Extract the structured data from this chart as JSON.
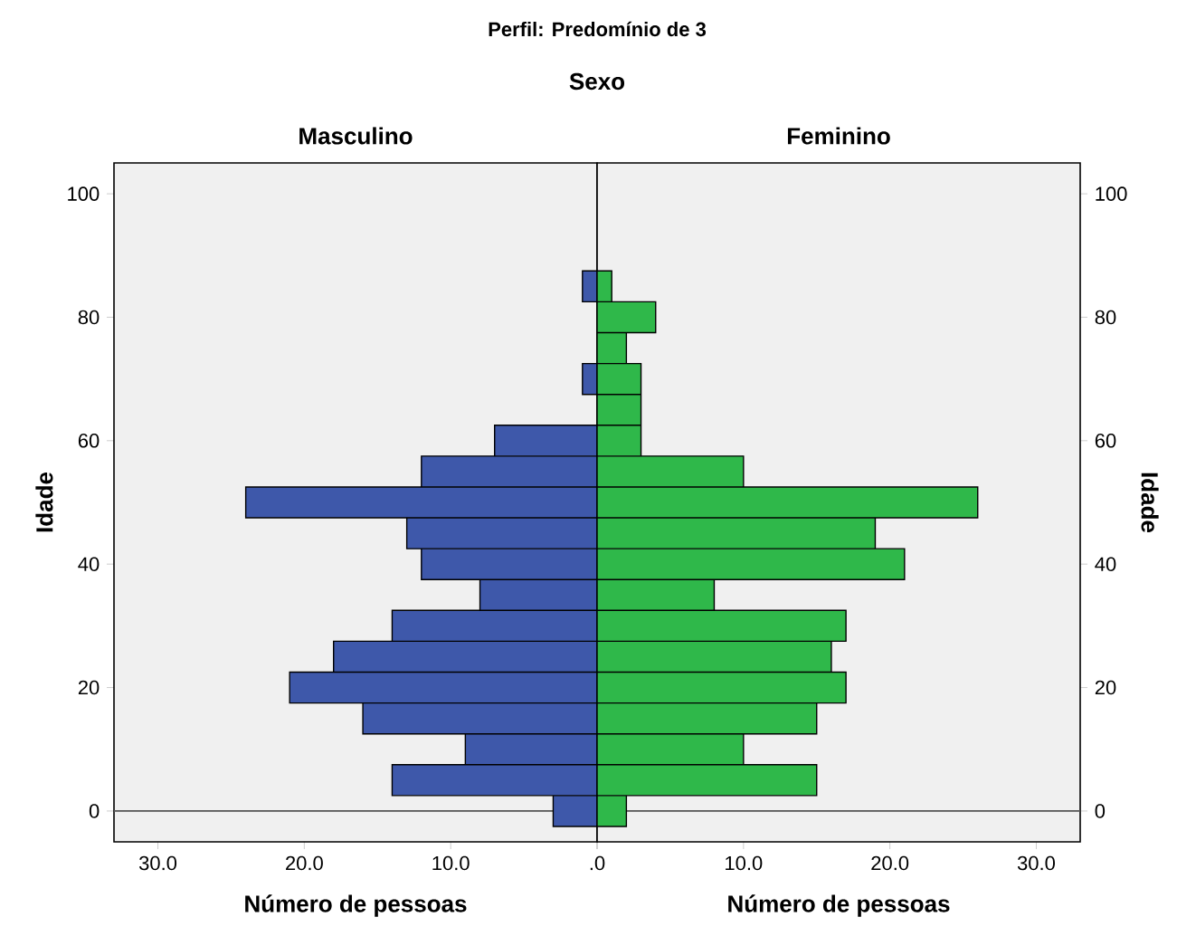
{
  "chart_data": [
    {
      "type": "bar",
      "orientation": "horizontal",
      "title": "Perfil: Predomínio de 3",
      "subtitle": "Sexo",
      "xlabel": "Número de pessoas",
      "ylabel": "Idade",
      "x": [
        0,
        5,
        10,
        15,
        20,
        25,
        30,
        35,
        40,
        45,
        50,
        55,
        60,
        65,
        70,
        75,
        80,
        85
      ],
      "series": [
        {
          "name": "Masculino",
          "color": "#3e58aa",
          "values": [
            3,
            14,
            9,
            16,
            21,
            18,
            14,
            8,
            12,
            13,
            24,
            12,
            7,
            0,
            1,
            0,
            0,
            1
          ]
        }
      ],
      "xlim": [
        33,
        0
      ],
      "xticks": [
        {
          "value": 30,
          "label": "30.0"
        },
        {
          "value": 20,
          "label": "20.0"
        },
        {
          "value": 10,
          "label": "10.0"
        },
        {
          "value": 0,
          "label": ".0"
        }
      ],
      "ylim": [
        -5,
        105
      ],
      "yticks": [
        0,
        20,
        40,
        60,
        80,
        100
      ],
      "ref_lines": [
        {
          "axis": "y",
          "value": 0,
          "color": "#555555"
        }
      ]
    },
    {
      "type": "bar",
      "orientation": "horizontal",
      "xlabel": "Número de pessoas",
      "ylabel": "Idade",
      "x": [
        0,
        5,
        10,
        15,
        20,
        25,
        30,
        35,
        40,
        45,
        50,
        55,
        60,
        65,
        70,
        75,
        80,
        85
      ],
      "series": [
        {
          "name": "Feminino",
          "color": "#2fb84a",
          "values": [
            2,
            15,
            10,
            15,
            17,
            16,
            17,
            8,
            21,
            19,
            26,
            10,
            3,
            3,
            3,
            2,
            4,
            1
          ]
        }
      ],
      "xlim": [
        0,
        33
      ],
      "xticks": [
        {
          "value": 0,
          "label": null
        },
        {
          "value": 10,
          "label": "10.0"
        },
        {
          "value": 20,
          "label": "20.0"
        },
        {
          "value": 30,
          "label": "30.0"
        }
      ],
      "ylim": [
        -5,
        105
      ],
      "yticks": [
        0,
        20,
        40,
        60,
        80,
        100
      ],
      "ref_lines": [
        {
          "axis": "y",
          "value": 0,
          "color": "#555555"
        }
      ]
    }
  ]
}
